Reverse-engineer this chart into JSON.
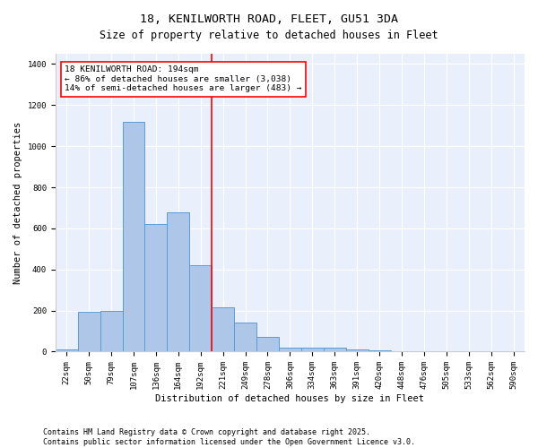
{
  "title": "18, KENILWORTH ROAD, FLEET, GU51 3DA",
  "subtitle": "Size of property relative to detached houses in Fleet",
  "xlabel": "Distribution of detached houses by size in Fleet",
  "ylabel": "Number of detached properties",
  "categories": [
    "22sqm",
    "50sqm",
    "79sqm",
    "107sqm",
    "136sqm",
    "164sqm",
    "192sqm",
    "221sqm",
    "249sqm",
    "278sqm",
    "306sqm",
    "334sqm",
    "363sqm",
    "391sqm",
    "420sqm",
    "448sqm",
    "476sqm",
    "505sqm",
    "533sqm",
    "562sqm",
    "590sqm"
  ],
  "values": [
    10,
    195,
    200,
    1120,
    620,
    680,
    420,
    215,
    140,
    70,
    20,
    20,
    20,
    10,
    5,
    0,
    0,
    0,
    0,
    0,
    0
  ],
  "bar_color": "#aec6e8",
  "bar_edge_color": "#5b9bd5",
  "vline_x_index": 6,
  "vline_color": "red",
  "annotation_text": "18 KENILWORTH ROAD: 194sqm\n← 86% of detached houses are smaller (3,038)\n14% of semi-detached houses are larger (483) →",
  "annotation_box_color": "white",
  "annotation_box_edge_color": "red",
  "ylim": [
    0,
    1450
  ],
  "yticks": [
    0,
    200,
    400,
    600,
    800,
    1000,
    1200,
    1400
  ],
  "footer_line1": "Contains HM Land Registry data © Crown copyright and database right 2025.",
  "footer_line2": "Contains public sector information licensed under the Open Government Licence v3.0.",
  "background_color": "#eaf0fb",
  "title_fontsize": 9.5,
  "subtitle_fontsize": 8.5,
  "axis_label_fontsize": 7.5,
  "tick_fontsize": 6.5,
  "annotation_fontsize": 6.8,
  "footer_fontsize": 6.0
}
